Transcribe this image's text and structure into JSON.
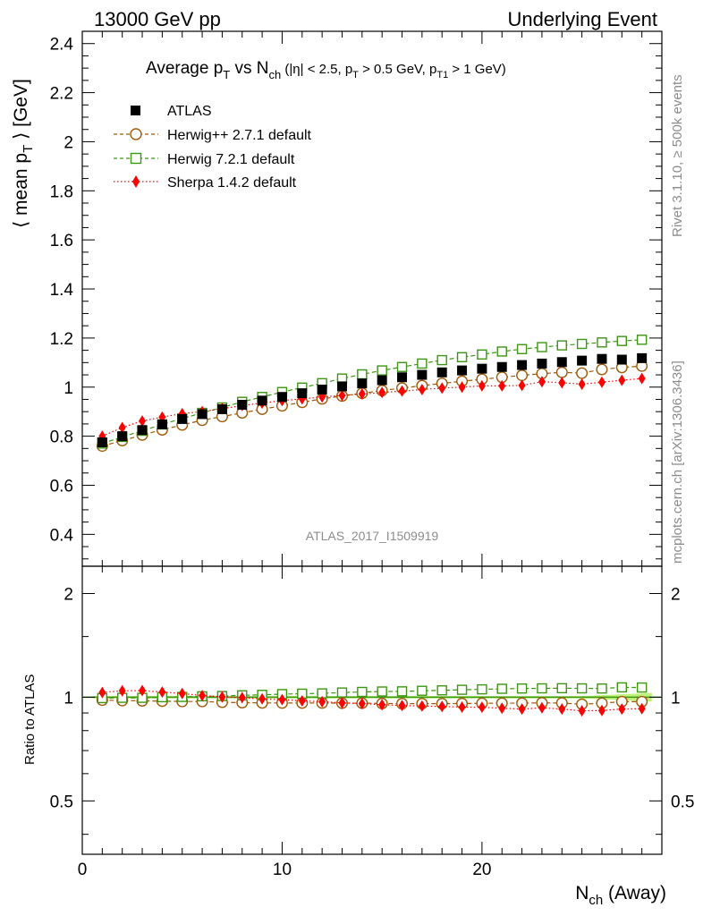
{
  "header": {
    "energy_label": "13000 GeV pp",
    "process_label": "Underlying Event"
  },
  "title": {
    "main": "Average p",
    "main_sub": "T",
    "vs": " vs N",
    "vs_sub": "ch",
    "cuts_a": " (|η| < 2.5, p",
    "cuts_a_sub": "T",
    "cuts_b": " > 0.5 GeV, p",
    "cuts_b_sub": "T1",
    "cuts_c": " > 1 GeV)"
  },
  "side_labels": {
    "rivet": "Rivet 3.1.10, ≥ 500k events",
    "mcplots": "mcplots.cern.ch [arXiv:1306.3436]"
  },
  "watermark": "ATLAS_2017_I1509919",
  "axes": {
    "ylabel_main_a": "⟨ mean p",
    "ylabel_main_sub": "T",
    "ylabel_main_b": " ⟩ [GeV]",
    "ylabel_ratio": "Ratio to ATLAS",
    "xlabel_a": "N",
    "xlabel_sub": "ch",
    "xlabel_b": " (Away)"
  },
  "colors": {
    "atlas": "#000000",
    "herwigpp": "#a05a0a",
    "herwig7": "#3c9614",
    "sherpa": "#ff0000",
    "band": "#b4f064"
  },
  "chart_data": [
    {
      "type": "scatter",
      "panel": "main",
      "x": [
        1,
        2,
        3,
        4,
        5,
        6,
        7,
        8,
        9,
        10,
        11,
        12,
        13,
        14,
        15,
        16,
        17,
        18,
        19,
        20,
        21,
        22,
        23,
        24,
        25,
        26,
        27,
        28
      ],
      "xlim": [
        0,
        29
      ],
      "ylim": [
        0.27,
        2.45
      ],
      "yticks": [
        0.4,
        0.6,
        0.8,
        1,
        1.2,
        1.4,
        1.6,
        1.8,
        2,
        2.2,
        2.4
      ],
      "xticks": [
        0,
        10,
        20
      ],
      "series": [
        {
          "name": "ATLAS",
          "key": "atlas",
          "marker": "filled-square",
          "line": "none",
          "values": [
            0.775,
            0.8,
            0.825,
            0.848,
            0.87,
            0.89,
            0.91,
            0.928,
            0.945,
            0.96,
            0.975,
            0.99,
            1.003,
            1.015,
            1.028,
            1.04,
            1.05,
            1.06,
            1.068,
            1.075,
            1.082,
            1.09,
            1.096,
            1.102,
            1.108,
            1.115,
            1.112,
            1.118
          ]
        },
        {
          "name": "Herwig++ 2.7.1 default",
          "key": "herwigpp",
          "marker": "open-circle",
          "line": "dashed",
          "values": [
            0.76,
            0.782,
            0.805,
            0.826,
            0.846,
            0.865,
            0.88,
            0.895,
            0.91,
            0.924,
            0.938,
            0.952,
            0.964,
            0.975,
            0.986,
            0.996,
            1.006,
            1.015,
            1.024,
            1.032,
            1.04,
            1.048,
            1.055,
            1.06,
            1.057,
            1.072,
            1.08,
            1.086
          ]
        },
        {
          "name": "Herwig 7.2.1 default",
          "key": "herwig7",
          "marker": "open-square",
          "line": "dashed",
          "values": [
            0.77,
            0.797,
            0.822,
            0.848,
            0.872,
            0.895,
            0.917,
            0.94,
            0.96,
            0.98,
            0.998,
            1.016,
            1.035,
            1.052,
            1.068,
            1.082,
            1.096,
            1.11,
            1.122,
            1.133,
            1.145,
            1.155,
            1.163,
            1.17,
            1.176,
            1.182,
            1.188,
            1.193
          ]
        },
        {
          "name": "Sherpa 1.4.2 default",
          "key": "sherpa",
          "marker": "filled-diamond",
          "line": "dotted",
          "values": [
            0.8,
            0.835,
            0.862,
            0.878,
            0.892,
            0.9,
            0.912,
            0.925,
            0.935,
            0.945,
            0.952,
            0.96,
            0.966,
            0.972,
            0.978,
            0.984,
            0.99,
            0.996,
            1.0,
            1.005,
            1.005,
            1.007,
            1.022,
            1.018,
            1.012,
            1.02,
            1.028,
            1.035
          ]
        }
      ]
    },
    {
      "type": "scatter",
      "panel": "ratio",
      "x": [
        1,
        2,
        3,
        4,
        5,
        6,
        7,
        8,
        9,
        10,
        11,
        12,
        13,
        14,
        15,
        16,
        17,
        18,
        19,
        20,
        21,
        22,
        23,
        24,
        25,
        26,
        27,
        28
      ],
      "xlim": [
        0,
        29
      ],
      "ylim": [
        0.35,
        2.4
      ],
      "scale": "log",
      "yticks": [
        0.5,
        1,
        2
      ],
      "series": [
        {
          "name": "Herwig++ 2.7.1 default",
          "key": "herwigpp",
          "marker": "open-circle",
          "line": "dashed",
          "values": [
            0.981,
            0.978,
            0.976,
            0.974,
            0.972,
            0.972,
            0.967,
            0.964,
            0.963,
            0.962,
            0.962,
            0.962,
            0.961,
            0.961,
            0.959,
            0.958,
            0.958,
            0.958,
            0.959,
            0.96,
            0.961,
            0.961,
            0.963,
            0.962,
            0.954,
            0.961,
            0.971,
            0.971
          ]
        },
        {
          "name": "Herwig 7.2.1 default",
          "key": "herwig7",
          "marker": "open-square",
          "line": "dashed",
          "values": [
            0.994,
            0.996,
            0.996,
            1.0,
            1.002,
            1.006,
            1.008,
            1.013,
            1.016,
            1.021,
            1.024,
            1.026,
            1.032,
            1.036,
            1.039,
            1.04,
            1.044,
            1.047,
            1.051,
            1.054,
            1.058,
            1.06,
            1.061,
            1.062,
            1.061,
            1.06,
            1.068,
            1.067
          ]
        },
        {
          "name": "Sherpa 1.4.2 default",
          "key": "sherpa",
          "marker": "filled-diamond",
          "line": "dotted",
          "values": [
            1.032,
            1.044,
            1.045,
            1.035,
            1.025,
            1.011,
            1.002,
            0.997,
            0.989,
            0.984,
            0.976,
            0.97,
            0.963,
            0.958,
            0.951,
            0.946,
            0.943,
            0.94,
            0.936,
            0.935,
            0.929,
            0.924,
            0.932,
            0.924,
            0.913,
            0.915,
            0.924,
            0.926
          ]
        }
      ]
    }
  ]
}
